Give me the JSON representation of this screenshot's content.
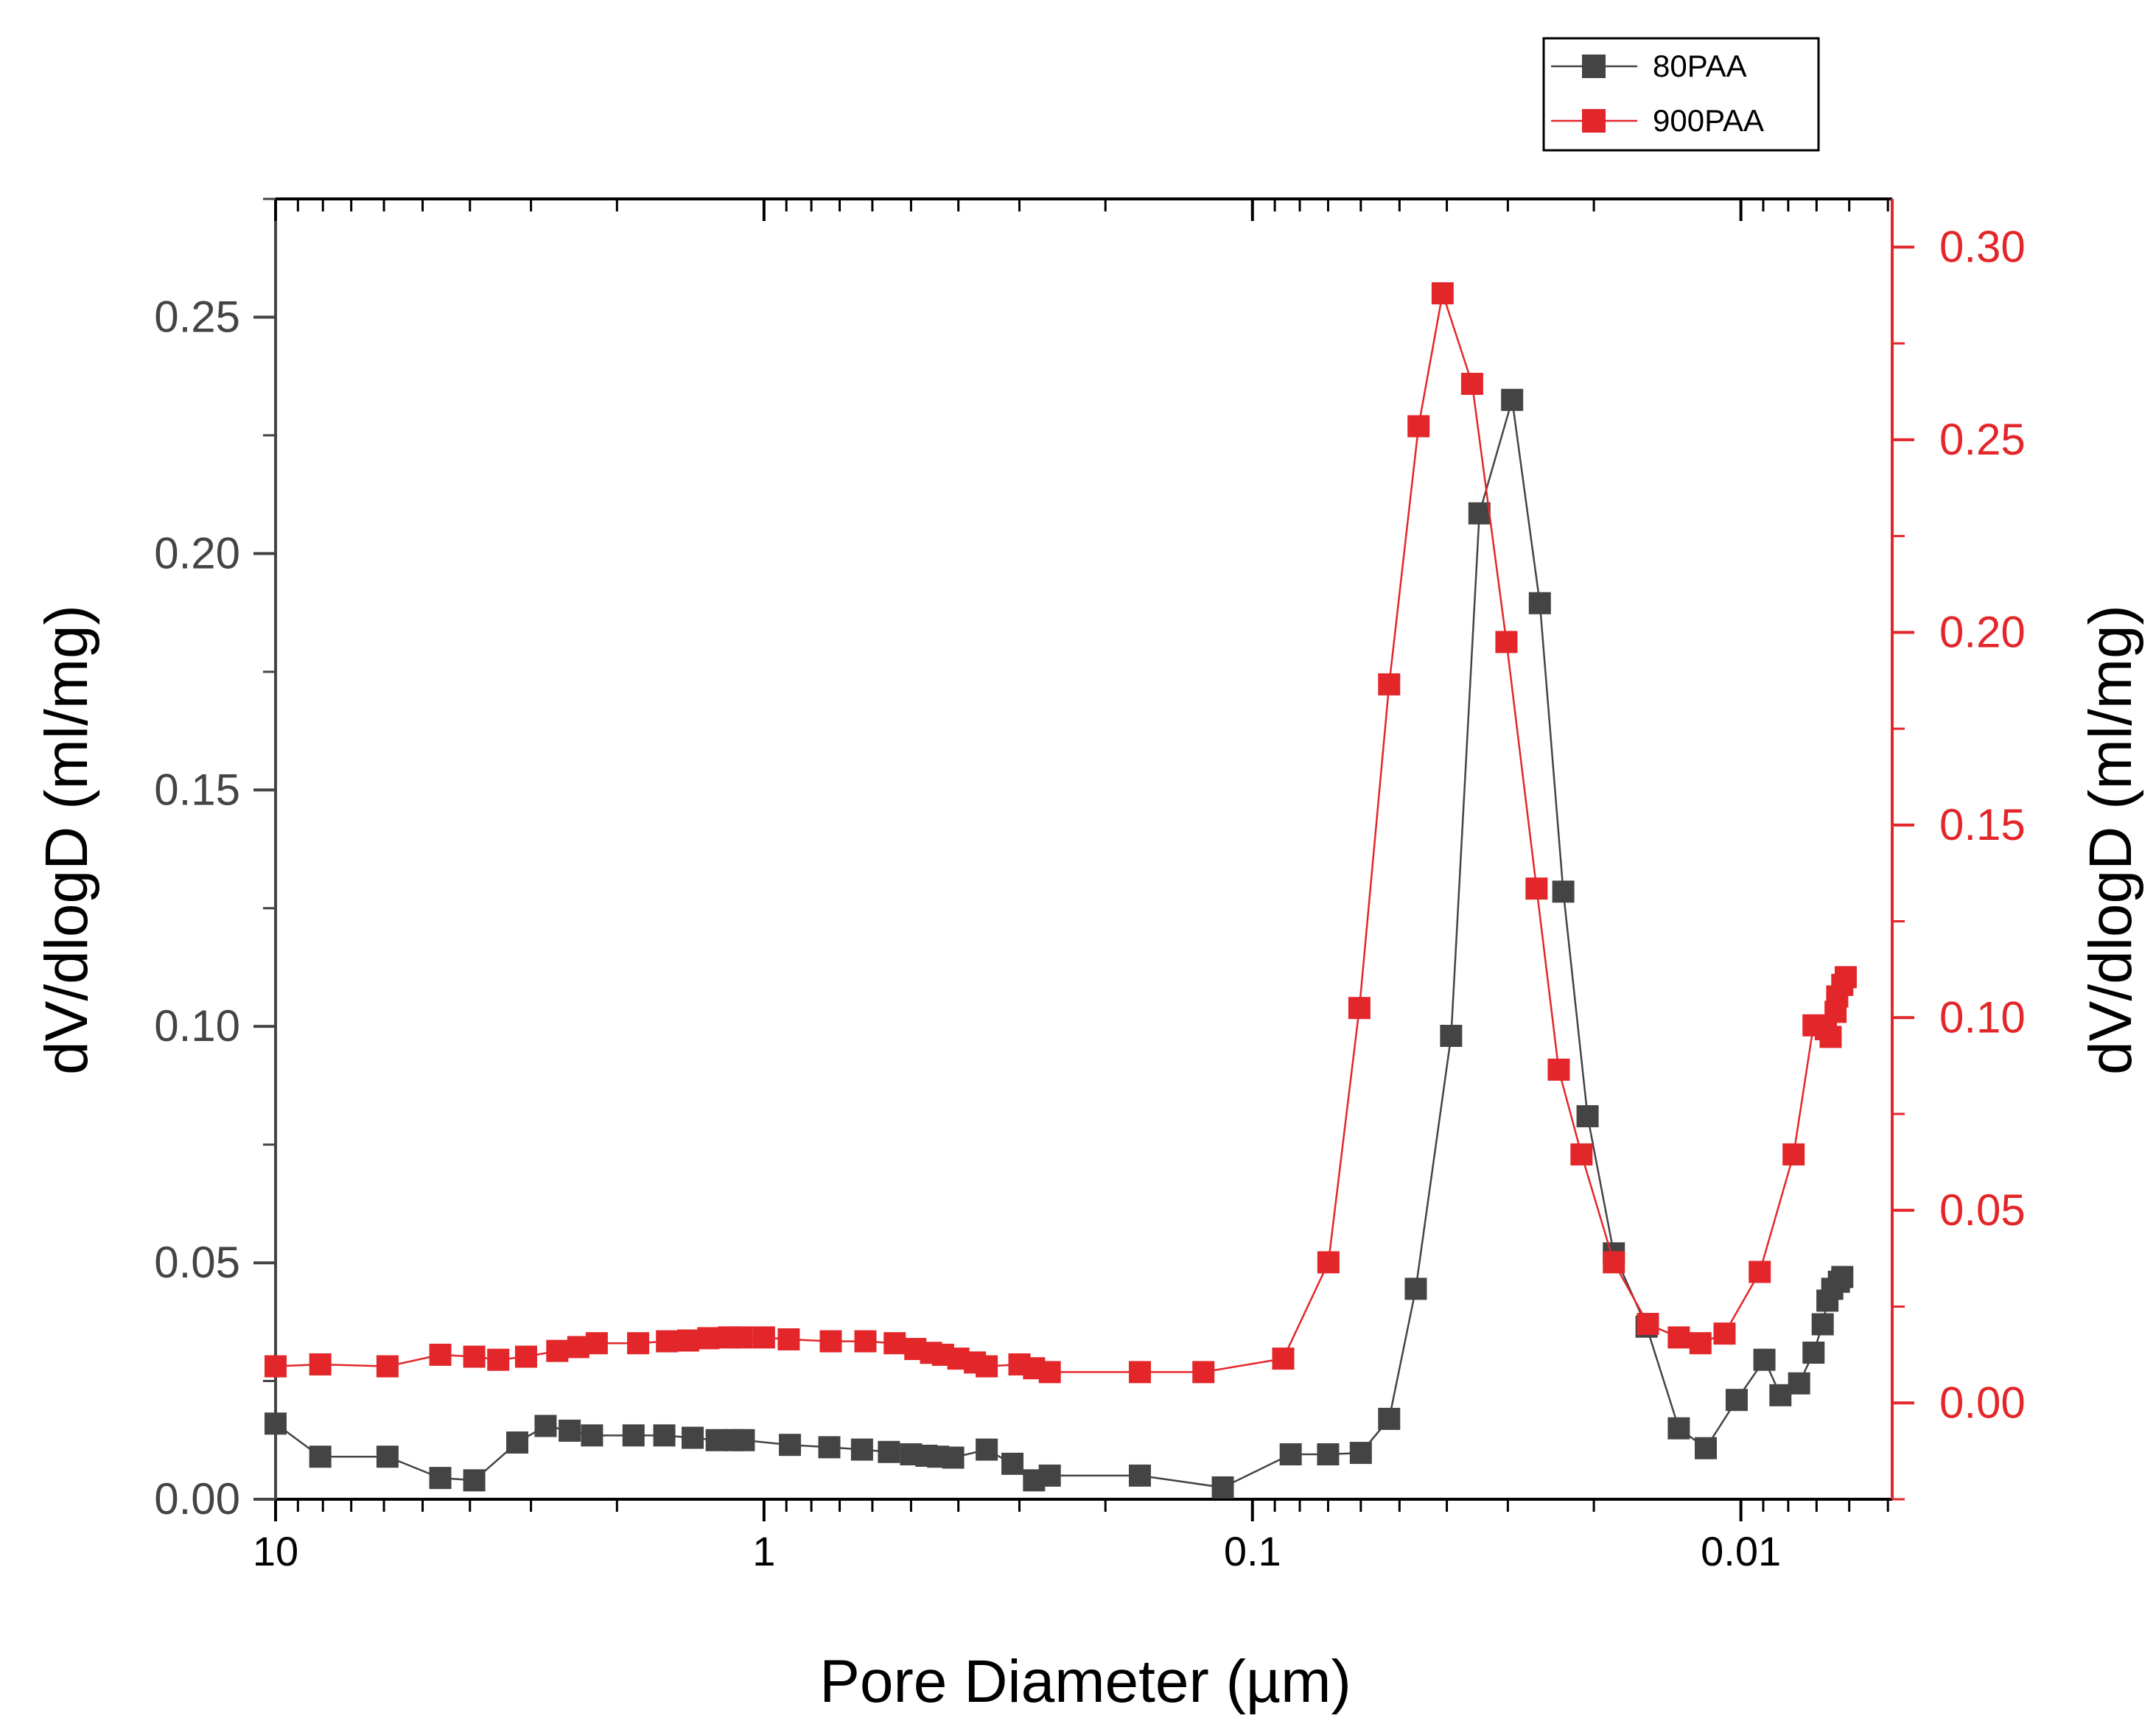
{
  "chart_data": {
    "type": "scatter",
    "x_scale": "log",
    "x_reversed": true,
    "xlabel": "Pore Diameter (µm)",
    "ylabel_left": "dV/dlogD (ml/mg)",
    "ylabel_right": "dV/dlogD (ml/mg)",
    "xlim": [
      10,
      0.0049
    ],
    "ylim_left": [
      0,
      0.275
    ],
    "ylim_right": [
      -0.025,
      0.3125
    ],
    "x_ticks": [
      {
        "value": 10,
        "label": "10"
      },
      {
        "value": 1,
        "label": "1"
      },
      {
        "value": 0.1,
        "label": "0.1"
      },
      {
        "value": 0.01,
        "label": "0.01"
      }
    ],
    "y_left_ticks": [
      {
        "value": 0,
        "label": "0.00"
      },
      {
        "value": 0.05,
        "label": "0.05"
      },
      {
        "value": 0.1,
        "label": "0.10"
      },
      {
        "value": 0.15,
        "label": "0.15"
      },
      {
        "value": 0.2,
        "label": "0.20"
      },
      {
        "value": 0.25,
        "label": "0.25"
      }
    ],
    "y_right_ticks": [
      {
        "value": 0,
        "label": "0.00"
      },
      {
        "value": 0.05,
        "label": "0.05"
      },
      {
        "value": 0.1,
        "label": "0.10"
      },
      {
        "value": 0.15,
        "label": "0.15"
      },
      {
        "value": 0.2,
        "label": "0.20"
      },
      {
        "value": 0.25,
        "label": "0.25"
      },
      {
        "value": 0.3,
        "label": "0.30"
      }
    ],
    "legend_position": "top-right",
    "series": [
      {
        "name": "80PAA",
        "axis": "left",
        "color": "#444444",
        "points": [
          [
            10,
            0.016
          ],
          [
            8.1,
            0.009
          ],
          [
            5.9,
            0.009
          ],
          [
            4.6,
            0.0045
          ],
          [
            3.92,
            0.004
          ],
          [
            3.2,
            0.012
          ],
          [
            2.8,
            0.0155
          ],
          [
            2.5,
            0.0145
          ],
          [
            2.25,
            0.0135
          ],
          [
            1.85,
            0.0135
          ],
          [
            1.6,
            0.0135
          ],
          [
            1.4,
            0.013
          ],
          [
            1.25,
            0.0125
          ],
          [
            1.15,
            0.0125
          ],
          [
            1.1,
            0.0125
          ],
          [
            0.885,
            0.0115
          ],
          [
            0.735,
            0.011
          ],
          [
            0.63,
            0.0105
          ],
          [
            0.555,
            0.01
          ],
          [
            0.5,
            0.0095
          ],
          [
            0.465,
            0.0092
          ],
          [
            0.44,
            0.009
          ],
          [
            0.41,
            0.0088
          ],
          [
            0.35,
            0.0105
          ],
          [
            0.31,
            0.0075
          ],
          [
            0.28,
            0.004
          ],
          [
            0.26,
            0.005
          ],
          [
            0.17,
            0.005
          ],
          [
            0.115,
            0.0025
          ],
          [
            0.0835,
            0.0095
          ],
          [
            0.07,
            0.0095
          ],
          [
            0.06,
            0.0098
          ],
          [
            0.0525,
            0.017
          ],
          [
            0.0463,
            0.0445
          ],
          [
            0.0392,
            0.098
          ],
          [
            0.0343,
            0.2085
          ],
          [
            0.0294,
            0.2325
          ],
          [
            0.0258,
            0.1895
          ],
          [
            0.0231,
            0.1285
          ],
          [
            0.0206,
            0.081
          ],
          [
            0.0182,
            0.052
          ],
          [
            0.0156,
            0.0365
          ],
          [
            0.0134,
            0.015
          ],
          [
            0.0118,
            0.0108
          ],
          [
            0.0102,
            0.021
          ],
          [
            0.00895,
            0.0295
          ],
          [
            0.0083,
            0.022
          ],
          [
            0.0076,
            0.0245
          ],
          [
            0.0071,
            0.031
          ],
          [
            0.0068,
            0.037
          ],
          [
            0.00665,
            0.042
          ],
          [
            0.0065,
            0.0445
          ],
          [
            0.0063,
            0.046
          ],
          [
            0.0062,
            0.047
          ]
        ]
      },
      {
        "name": "900PAA",
        "axis": "right",
        "color": "#e3262a",
        "points": [
          [
            10,
            0.0095
          ],
          [
            8.1,
            0.01
          ],
          [
            5.9,
            0.0095
          ],
          [
            4.6,
            0.0125
          ],
          [
            3.92,
            0.012
          ],
          [
            3.5,
            0.0112
          ],
          [
            3.07,
            0.012
          ],
          [
            2.65,
            0.0135
          ],
          [
            2.4,
            0.0145
          ],
          [
            2.2,
            0.0155
          ],
          [
            1.81,
            0.0155
          ],
          [
            1.58,
            0.016
          ],
          [
            1.43,
            0.0162
          ],
          [
            1.3,
            0.0168
          ],
          [
            1.18,
            0.017
          ],
          [
            1.11,
            0.017
          ],
          [
            1.0,
            0.017
          ],
          [
            0.89,
            0.0165
          ],
          [
            0.73,
            0.016
          ],
          [
            0.62,
            0.016
          ],
          [
            0.54,
            0.0155
          ],
          [
            0.49,
            0.014
          ],
          [
            0.455,
            0.013
          ],
          [
            0.43,
            0.0125
          ],
          [
            0.4,
            0.0115
          ],
          [
            0.37,
            0.0105
          ],
          [
            0.35,
            0.0095
          ],
          [
            0.3,
            0.01
          ],
          [
            0.28,
            0.009
          ],
          [
            0.26,
            0.008
          ],
          [
            0.17,
            0.008
          ],
          [
            0.126,
            0.008
          ],
          [
            0.0865,
            0.0115
          ],
          [
            0.0699,
            0.0365
          ],
          [
            0.0604,
            0.1025
          ],
          [
            0.0525,
            0.1865
          ],
          [
            0.0457,
            0.2535
          ],
          [
            0.0408,
            0.288
          ],
          [
            0.0355,
            0.2645
          ],
          [
            0.0302,
            0.1975
          ],
          [
            0.0262,
            0.1335
          ],
          [
            0.0236,
            0.0865
          ],
          [
            0.0212,
            0.0645
          ],
          [
            0.0182,
            0.0365
          ],
          [
            0.0155,
            0.0205
          ],
          [
            0.0134,
            0.017
          ],
          [
            0.0121,
            0.0155
          ],
          [
            0.0108,
            0.018
          ],
          [
            0.00915,
            0.034
          ],
          [
            0.0078,
            0.0645
          ],
          [
            0.0071,
            0.098
          ],
          [
            0.0067,
            0.097
          ],
          [
            0.00655,
            0.095
          ],
          [
            0.0064,
            0.1015
          ],
          [
            0.00635,
            0.1055
          ],
          [
            0.0062,
            0.1085
          ],
          [
            0.0061,
            0.1105
          ]
        ]
      }
    ]
  }
}
